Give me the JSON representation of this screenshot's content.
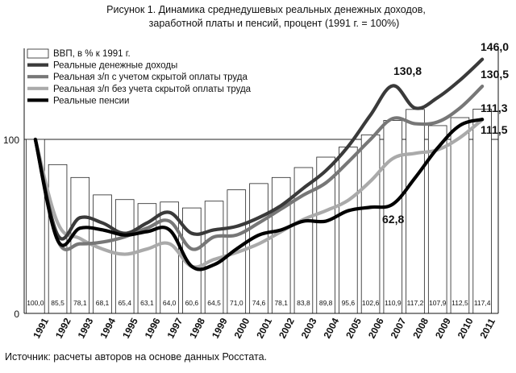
{
  "figure_title_line1": "Рисунок 1.   Динамика среднедушевых реальных денежных доходов,",
  "figure_title_line2": "заработной платы и пенсий, процент (1991 г. = 100%)",
  "source": "Источник:   расчеты авторов на основе данных Росстата.",
  "chart_data": {
    "type": "bar+line",
    "ylim": [
      0,
      155
    ],
    "yticks": [
      0,
      100
    ],
    "reference_line": 100,
    "categories": [
      "1991",
      "1992",
      "1993",
      "1994",
      "1995",
      "1996",
      "1997",
      "1998",
      "1999",
      "2000",
      "2001",
      "2002",
      "2003",
      "2004",
      "2005",
      "2006",
      "2007",
      "2008",
      "2009",
      "2010",
      "2011"
    ],
    "bars": {
      "name": "ВВП, в % к 1991 г.",
      "values": [
        100.0,
        85.5,
        78.1,
        68.1,
        65.4,
        63.1,
        64.0,
        60.6,
        64.5,
        71.0,
        74.6,
        78.1,
        83.8,
        89.8,
        95.6,
        102.6,
        110.9,
        117.2,
        107.9,
        112.5,
        117.4
      ],
      "labels": [
        "100,0",
        "85,5",
        "78,1",
        "68,1",
        "65,4",
        "63,1",
        "64,0",
        "60,6",
        "64,5",
        "71,0",
        "74,6",
        "78,1",
        "83,8",
        "89,8",
        "95,6",
        "102,6",
        "110,9",
        "117,2",
        "107,9",
        "112,5",
        "117,4"
      ],
      "color": "#ffffff"
    },
    "series": [
      {
        "name": "Реальные денежные доходы",
        "color": "#3a3a3a",
        "values": [
          100,
          45,
          55,
          52,
          46,
          52,
          58,
          46,
          48,
          50,
          55,
          62,
          72,
          82,
          96,
          114,
          130.8,
          118,
          124,
          134,
          146.0
        ]
      },
      {
        "name": "Реальная з/п с учетом скрытой оплаты труда",
        "color": "#777777",
        "values": [
          100,
          42,
          40,
          41,
          44,
          49,
          53,
          37,
          44,
          45,
          52,
          60,
          68,
          75,
          87,
          100,
          112,
          109,
          110,
          118,
          130.5
        ]
      },
      {
        "name": "Реальная з/п без учета скрытой оплаты труда",
        "color": "#aaaaaa",
        "values": [
          100,
          52,
          43,
          37,
          34,
          37,
          40,
          27,
          31,
          35,
          40,
          47,
          54,
          59,
          65,
          76,
          89,
          92,
          94,
          101,
          111.3
        ]
      },
      {
        "name": "Реальные пенсии",
        "color": "#000000",
        "values": [
          100,
          42,
          49,
          48,
          45,
          47,
          48,
          27,
          28,
          37,
          45,
          48,
          53,
          53,
          59,
          61,
          62.8,
          78,
          95,
          108,
          111.5
        ]
      }
    ],
    "annotations": [
      "130,8",
      "146,0",
      "130,5",
      "111,3",
      "111,5",
      "62,8"
    ]
  }
}
